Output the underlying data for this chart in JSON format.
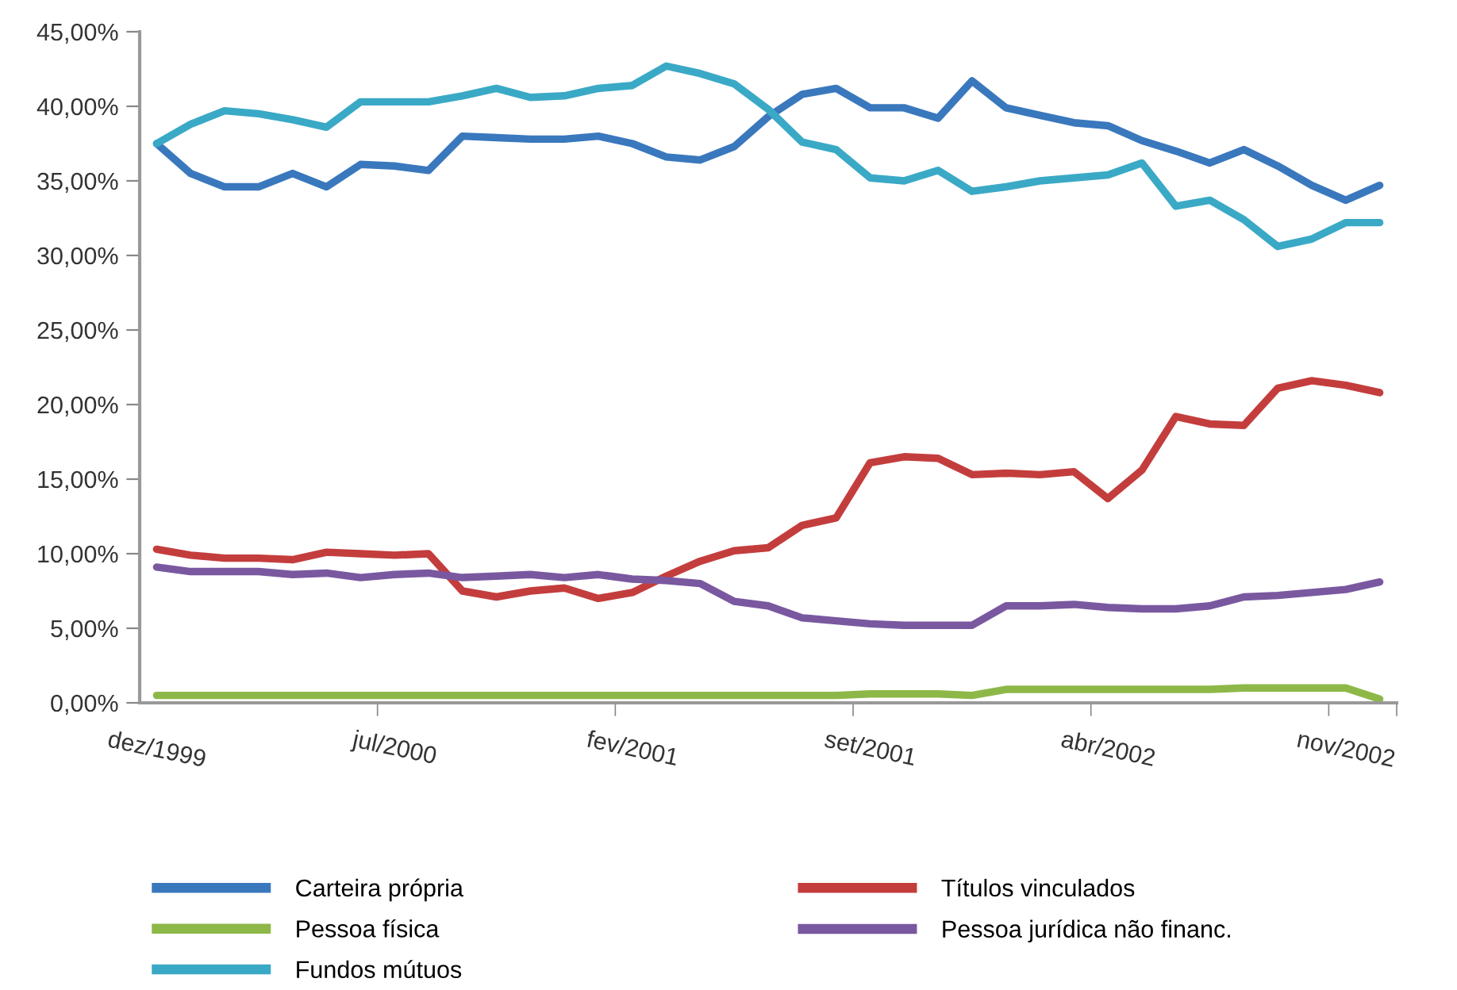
{
  "chart_data": {
    "type": "line",
    "categories": [
      "dez/1999",
      null,
      null,
      null,
      null,
      null,
      null,
      "jul/2000",
      null,
      null,
      null,
      null,
      null,
      null,
      "fev/2001",
      null,
      null,
      null,
      null,
      null,
      null,
      "set/2001",
      null,
      null,
      null,
      null,
      null,
      null,
      "abr/2002",
      null,
      null,
      null,
      null,
      null,
      null,
      "nov/2002",
      null
    ],
    "ylim": [
      0,
      45
    ],
    "yticks": [
      {
        "value": 0,
        "label": "0,00%"
      },
      {
        "value": 5,
        "label": "5,00%"
      },
      {
        "value": 10,
        "label": "10,00%"
      },
      {
        "value": 15,
        "label": "15,00%"
      },
      {
        "value": 20,
        "label": "20,00%"
      },
      {
        "value": 25,
        "label": "25,00%"
      },
      {
        "value": 30,
        "label": "30,00%"
      },
      {
        "value": 35,
        "label": "35,00%"
      },
      {
        "value": 40,
        "label": "40,00%"
      },
      {
        "value": 45,
        "label": "45,00%"
      }
    ],
    "grid": false,
    "legend": "bottom",
    "marker": "none",
    "line_style": "solid",
    "series": [
      {
        "name": "Carteira própria",
        "color": "#3a78bd",
        "values": [
          37.5,
          35.5,
          34.6,
          34.6,
          35.5,
          34.6,
          36.1,
          36.0,
          35.7,
          38.0,
          37.9,
          37.8,
          37.8,
          38.0,
          37.5,
          36.6,
          36.4,
          37.3,
          39.3,
          40.8,
          41.2,
          39.9,
          39.9,
          39.2,
          41.7,
          39.9,
          39.4,
          38.9,
          38.7,
          37.7,
          37.0,
          36.2,
          37.1,
          36.0,
          34.7,
          33.7,
          34.7
        ]
      },
      {
        "name": "Pessoa física",
        "color": "#8db848",
        "values": [
          0.5,
          0.5,
          0.5,
          0.5,
          0.5,
          0.5,
          0.5,
          0.5,
          0.5,
          0.5,
          0.5,
          0.5,
          0.5,
          0.5,
          0.5,
          0.5,
          0.5,
          0.5,
          0.5,
          0.5,
          0.5,
          0.6,
          0.6,
          0.6,
          0.5,
          0.9,
          0.9,
          0.9,
          0.9,
          0.9,
          0.9,
          0.9,
          1.0,
          1.0,
          1.0,
          1.0,
          0.25
        ]
      },
      {
        "name": "Fundos mútuos",
        "color": "#3aa9c6",
        "values": [
          37.5,
          38.8,
          39.7,
          39.5,
          39.1,
          38.6,
          40.3,
          40.3,
          40.3,
          40.7,
          41.2,
          40.6,
          40.7,
          41.2,
          41.4,
          42.7,
          42.2,
          41.5,
          39.8,
          37.6,
          37.1,
          35.2,
          35.0,
          35.7,
          34.3,
          34.6,
          35.0,
          35.2,
          35.4,
          36.2,
          33.3,
          33.7,
          32.4,
          30.6,
          31.1,
          32.2,
          32.2
        ]
      },
      {
        "name": "Títulos vinculados",
        "color": "#c43d3d",
        "values": [
          10.3,
          9.9,
          9.7,
          9.7,
          9.6,
          10.1,
          10.0,
          9.9,
          10.0,
          7.5,
          7.1,
          7.5,
          7.7,
          7.0,
          7.4,
          8.5,
          9.5,
          10.2,
          10.4,
          11.9,
          12.4,
          16.1,
          16.5,
          16.4,
          15.3,
          15.4,
          15.3,
          15.5,
          13.7,
          15.6,
          19.2,
          18.7,
          18.6,
          21.1,
          21.6,
          21.3,
          20.8
        ]
      },
      {
        "name": "Pessoa jurídica não financ.",
        "color": "#7a58a0",
        "values": [
          9.1,
          8.8,
          8.8,
          8.8,
          8.6,
          8.7,
          8.4,
          8.6,
          8.7,
          8.4,
          8.5,
          8.6,
          8.4,
          8.6,
          8.3,
          8.2,
          8.0,
          6.8,
          6.5,
          5.7,
          5.5,
          5.3,
          5.2,
          5.2,
          5.2,
          6.5,
          6.5,
          6.6,
          6.4,
          6.3,
          6.3,
          6.5,
          7.1,
          7.2,
          7.4,
          7.6,
          8.1
        ]
      }
    ]
  }
}
